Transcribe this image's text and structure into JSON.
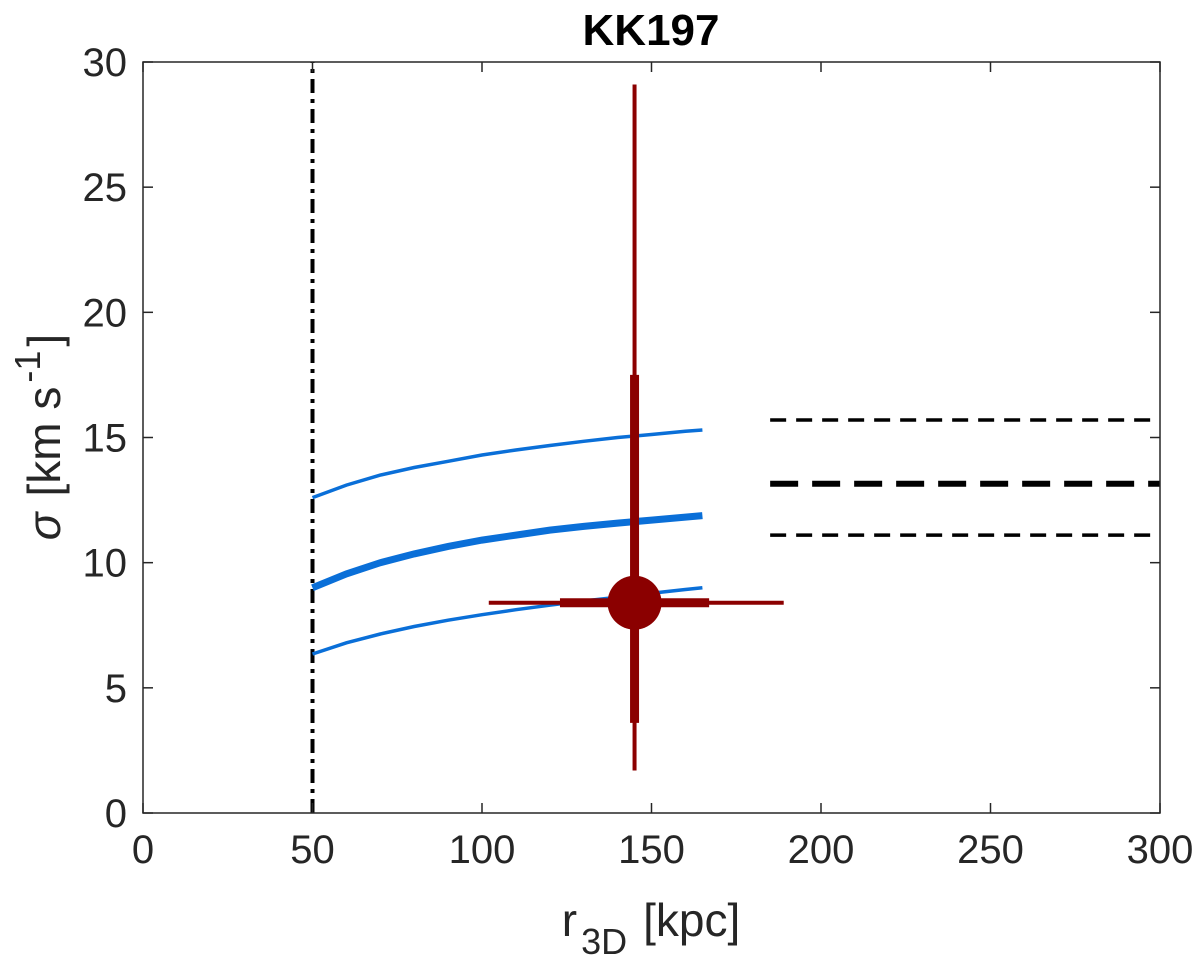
{
  "chart_data": {
    "type": "line",
    "title": "KK197",
    "xlabel": {
      "main": "r",
      "sub": "3D",
      "unit": "[kpc]"
    },
    "ylabel": {
      "symbol": "σ",
      "unit_open": "[km s",
      "sup": "-1",
      "unit_close": "]"
    },
    "xlim": [
      0,
      300
    ],
    "ylim": [
      0,
      30
    ],
    "xticks": [
      0,
      50,
      100,
      150,
      200,
      250,
      300
    ],
    "yticks": [
      0,
      5,
      10,
      15,
      20,
      25,
      30
    ],
    "grid": false,
    "colors": {
      "model": "#0a6fd8",
      "point": "#8b0000",
      "reference": "#000000",
      "axes": "#262626"
    },
    "series": [
      {
        "name": "model-upper",
        "style": "thin",
        "x": [
          50,
          60,
          70,
          80,
          90,
          100,
          110,
          120,
          130,
          140,
          150,
          160,
          165
        ],
        "y": [
          12.6,
          13.1,
          13.5,
          13.8,
          14.05,
          14.3,
          14.5,
          14.68,
          14.85,
          15.0,
          15.12,
          15.25,
          15.3
        ]
      },
      {
        "name": "model-median",
        "style": "thick",
        "x": [
          50,
          60,
          70,
          80,
          90,
          100,
          110,
          120,
          130,
          140,
          150,
          160,
          165
        ],
        "y": [
          9.0,
          9.55,
          10.0,
          10.35,
          10.65,
          10.9,
          11.1,
          11.3,
          11.45,
          11.58,
          11.7,
          11.82,
          11.88
        ]
      },
      {
        "name": "model-lower",
        "style": "thin",
        "x": [
          50,
          60,
          70,
          80,
          90,
          100,
          110,
          120,
          130,
          140,
          150,
          160,
          165
        ],
        "y": [
          6.35,
          6.8,
          7.15,
          7.45,
          7.7,
          7.92,
          8.12,
          8.3,
          8.47,
          8.62,
          8.78,
          8.93,
          9.0
        ]
      }
    ],
    "reference_lines": [
      {
        "name": "vline-r50",
        "orientation": "vertical",
        "x": 50,
        "y_range": [
          0,
          30
        ],
        "style": "dashdot"
      },
      {
        "name": "hline-upper",
        "orientation": "horizontal",
        "y": 15.7,
        "x_range": [
          185,
          300
        ],
        "style": "dashed-thin"
      },
      {
        "name": "hline-median",
        "orientation": "horizontal",
        "y": 13.15,
        "x_range": [
          185,
          300
        ],
        "style": "dashed-thick"
      },
      {
        "name": "hline-lower",
        "orientation": "horizontal",
        "y": 11.1,
        "x_range": [
          185,
          300
        ],
        "style": "dashed-thin"
      }
    ],
    "data_point": {
      "x": 145,
      "y": 8.4,
      "x_err_inner": [
        123,
        167
      ],
      "x_err_outer": [
        102,
        189
      ],
      "y_err_inner": [
        3.6,
        17.5
      ],
      "y_err_outer": [
        1.7,
        29.1
      ]
    }
  }
}
